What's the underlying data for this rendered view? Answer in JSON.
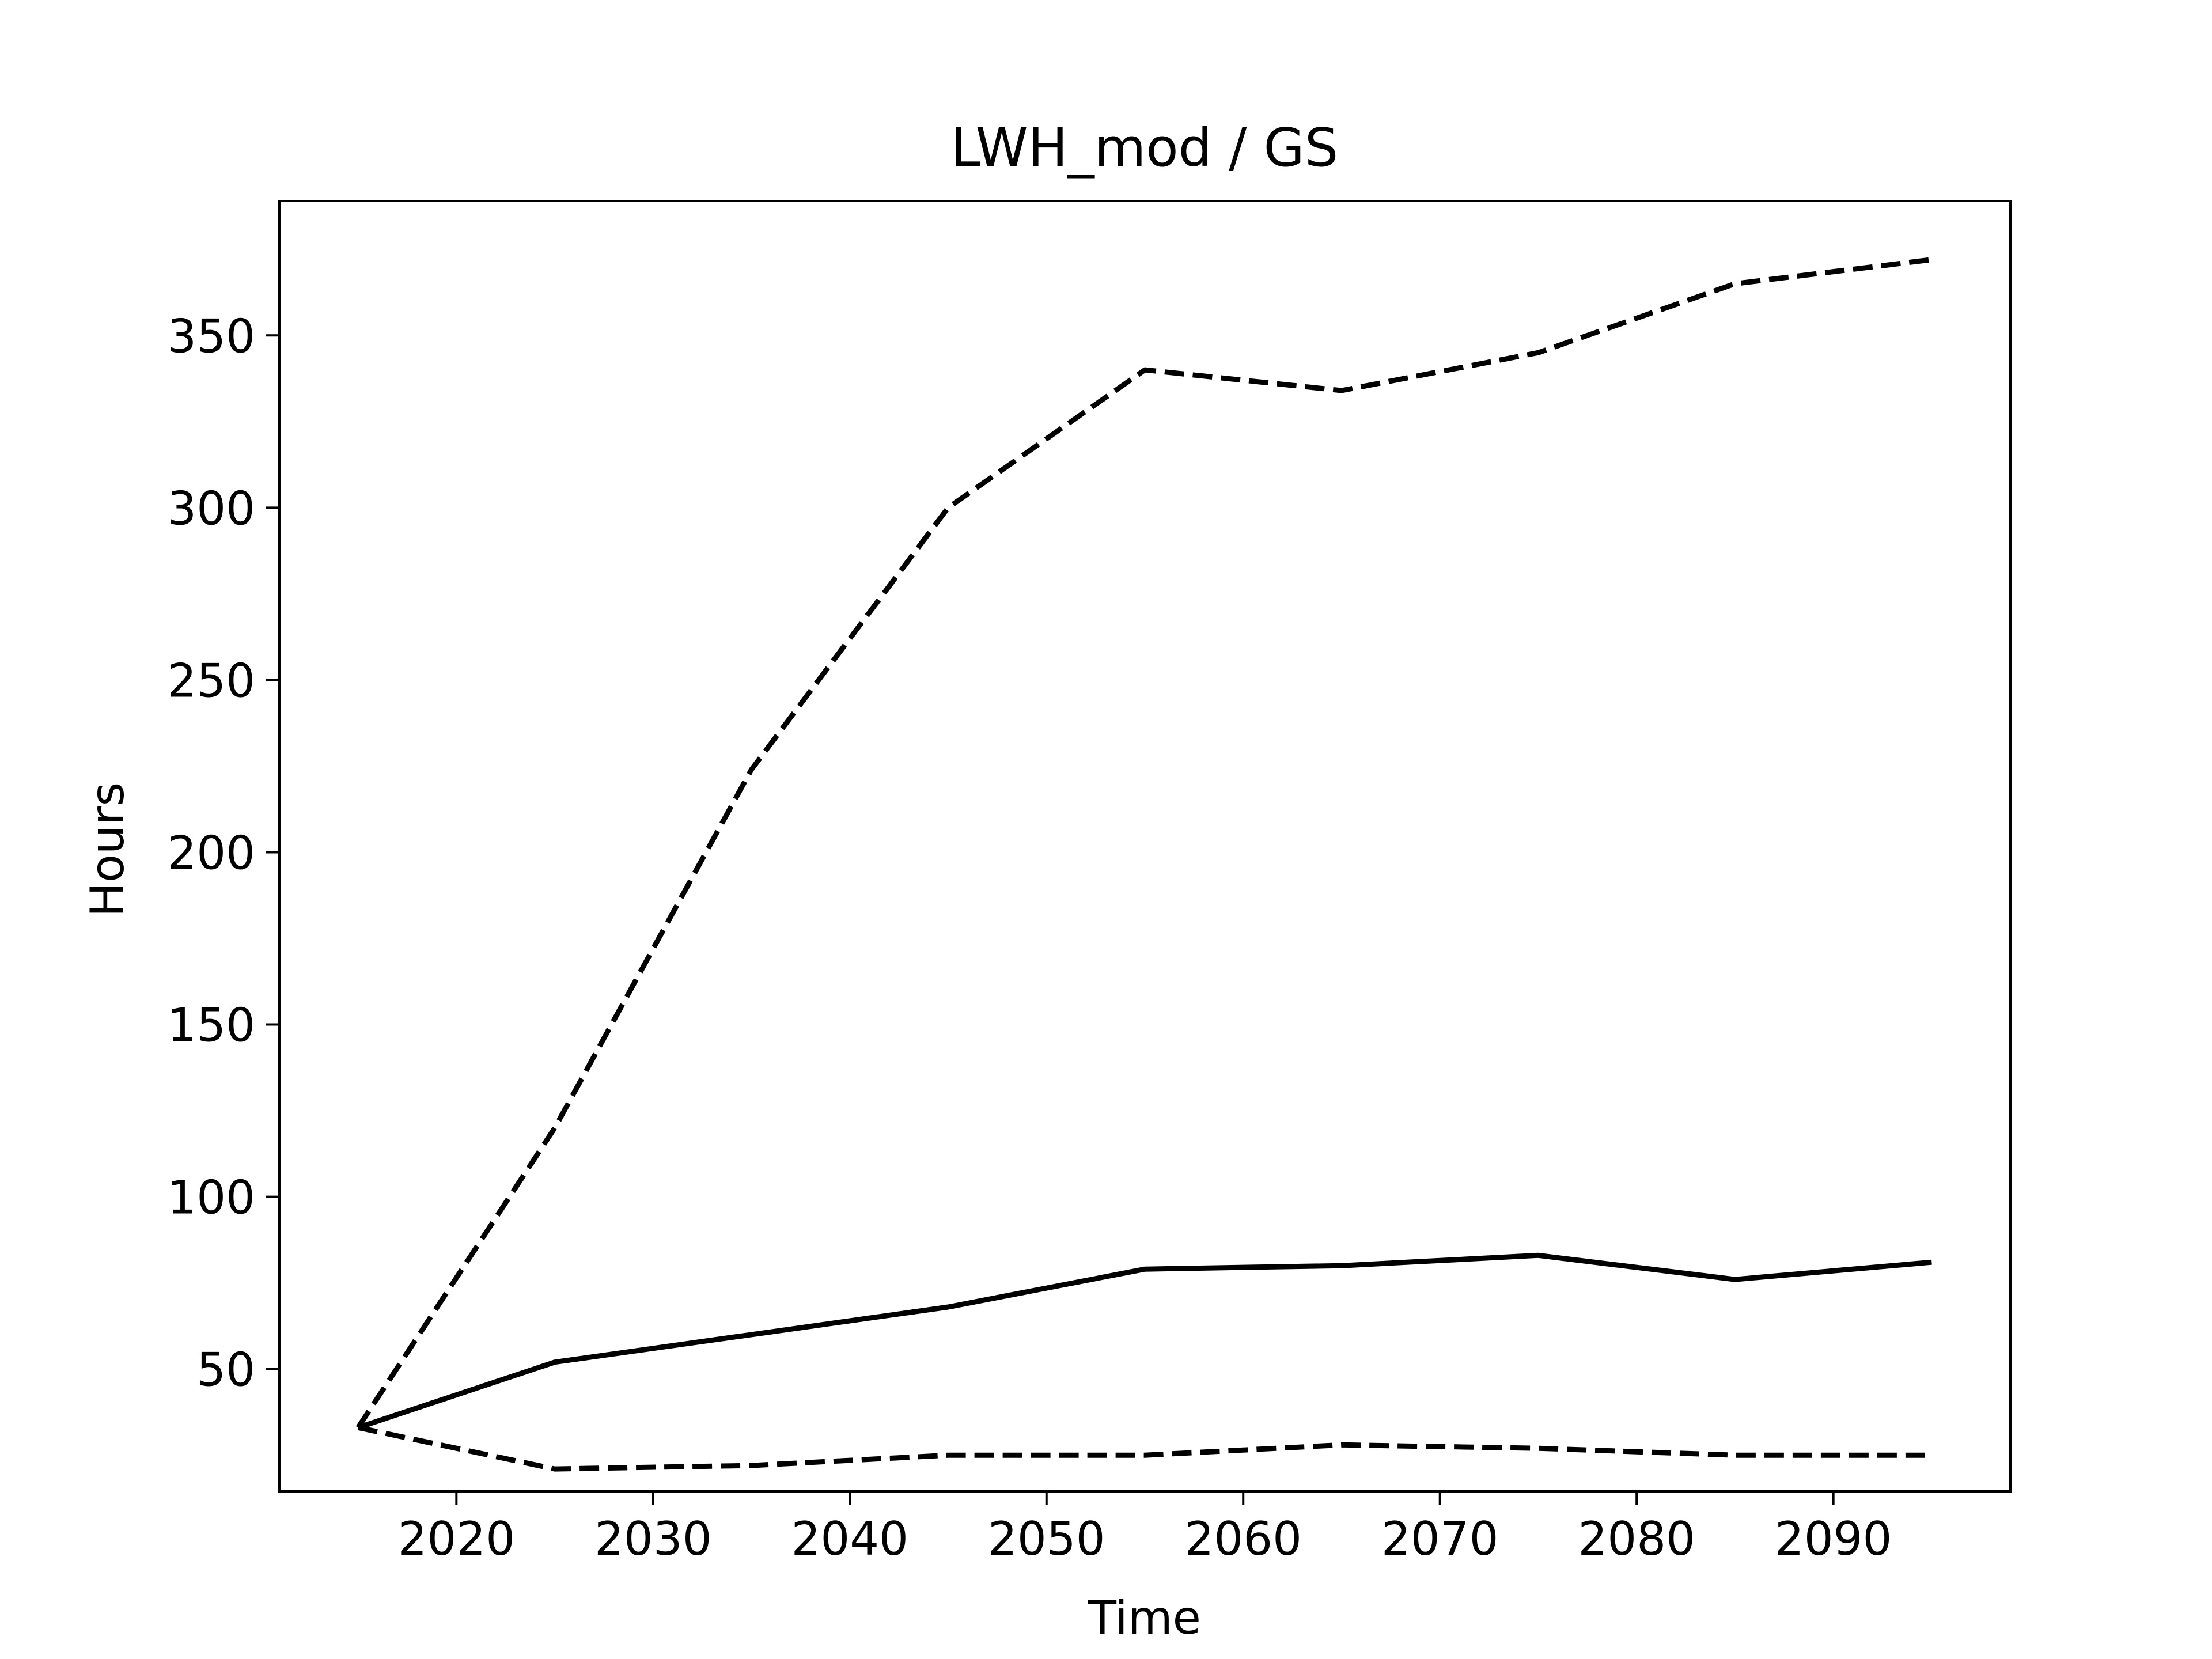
{
  "chart_data": {
    "type": "line",
    "title": "LWH_mod / GS",
    "xlabel": "Time",
    "ylabel": "Hours",
    "xlim": [
      2011,
      2099
    ],
    "ylim": [
      14.5,
      389
    ],
    "xticks": [
      2020,
      2030,
      2040,
      2050,
      2060,
      2070,
      2080,
      2090
    ],
    "yticks": [
      50,
      100,
      150,
      200,
      250,
      300,
      350
    ],
    "grid": false,
    "legend": "none",
    "series": [
      {
        "style": "dashed",
        "color": "#000000",
        "x": [
          2015,
          2025,
          2035,
          2045,
          2055,
          2065,
          2075,
          2085,
          2095
        ],
        "values": [
          33,
          120,
          224,
          300,
          340,
          334,
          345,
          365,
          372
        ]
      },
      {
        "style": "solid",
        "color": "#000000",
        "x": [
          2015,
          2025,
          2035,
          2045,
          2055,
          2065,
          2075,
          2085,
          2095
        ],
        "values": [
          33,
          52,
          60,
          68,
          79,
          80,
          83,
          76,
          81
        ]
      },
      {
        "style": "dashed",
        "color": "#000000",
        "x": [
          2015,
          2025,
          2035,
          2045,
          2055,
          2065,
          2075,
          2085,
          2095
        ],
        "values": [
          33,
          21,
          22,
          25,
          25,
          28,
          27,
          25,
          25
        ]
      }
    ]
  }
}
